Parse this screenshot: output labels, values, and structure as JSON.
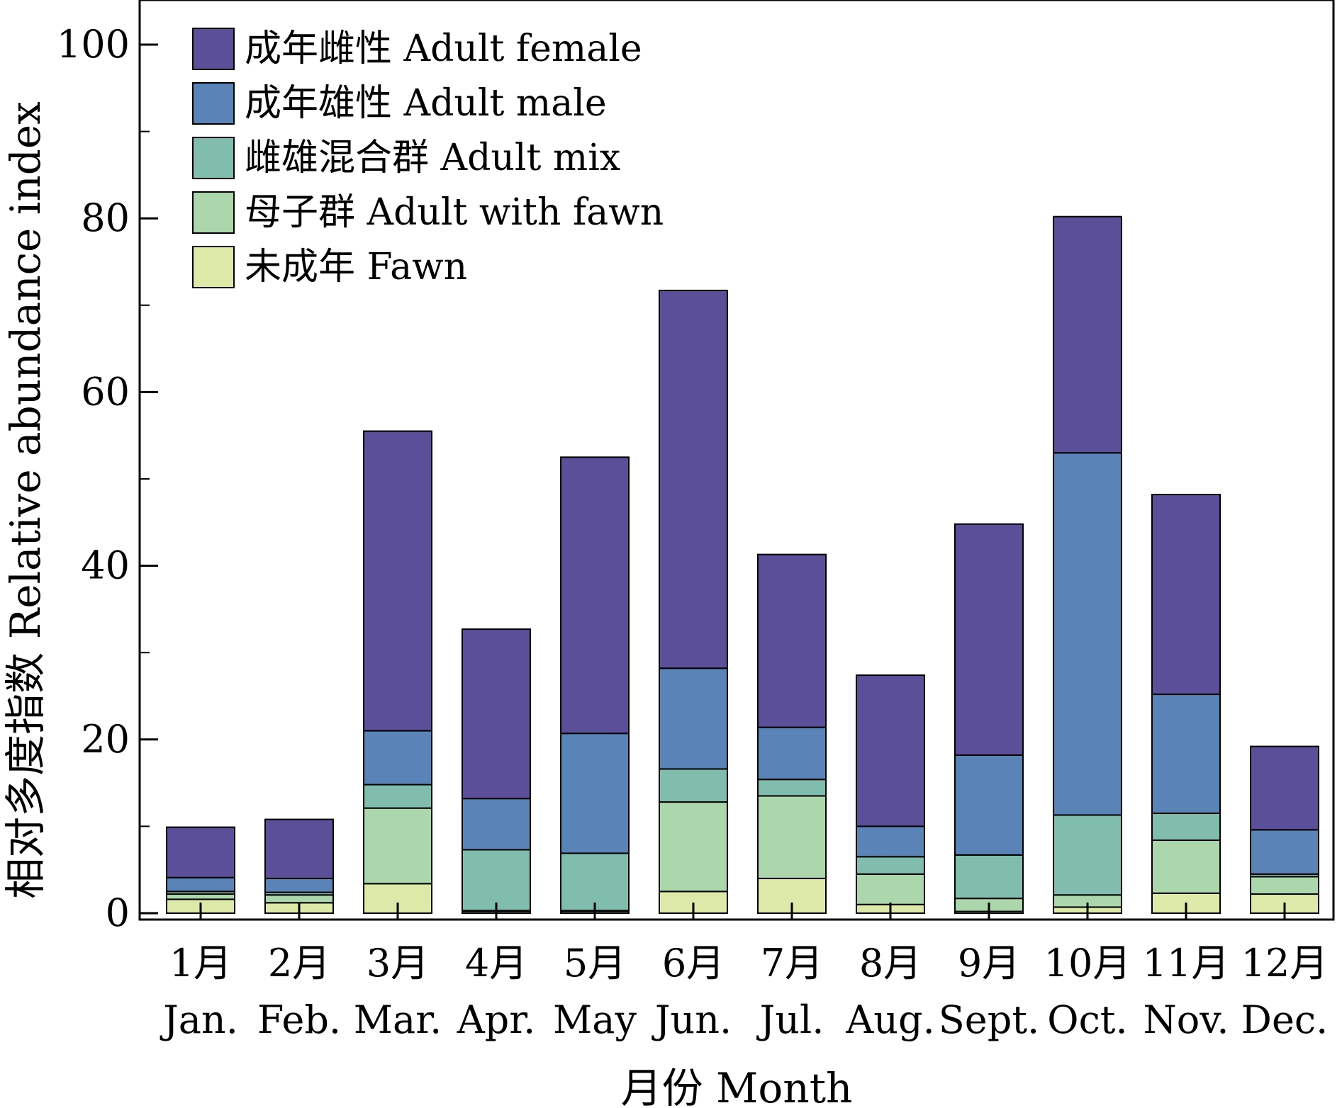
{
  "chart_data": {
    "type": "bar",
    "stacked": true,
    "xlabel": "月份 Month",
    "ylabel": "相对多度指数 Relative abundance index",
    "ylim": [
      0,
      105
    ],
    "yticks": [
      0,
      20,
      40,
      60,
      80,
      100
    ],
    "grid": false,
    "legend_position": "top-left",
    "categories": [
      [
        "1月",
        "Jan."
      ],
      [
        "2月",
        "Feb."
      ],
      [
        "3月",
        "Mar."
      ],
      [
        "4月",
        "Apr."
      ],
      [
        "5月",
        "May"
      ],
      [
        "6月",
        "Jun."
      ],
      [
        "7月",
        "Jul."
      ],
      [
        "8月",
        "Aug."
      ],
      [
        "9月",
        "Sept."
      ],
      [
        "10月",
        "Oct."
      ],
      [
        "11月",
        "Nov."
      ],
      [
        "12月",
        "Dec."
      ]
    ],
    "series": [
      {
        "name": "未成年 Fawn",
        "color": "#dce9a9",
        "values": [
          1.6,
          1.2,
          3.4,
          0.2,
          0.2,
          2.5,
          4.0,
          1.0,
          0.2,
          0.7,
          2.3,
          2.2
        ]
      },
      {
        "name": "母子群 Adult with fawn",
        "color": "#acd6ab",
        "values": [
          0.6,
          0.9,
          8.7,
          0.1,
          0.1,
          10.3,
          9.5,
          3.5,
          1.5,
          1.4,
          6.1,
          2.0
        ]
      },
      {
        "name": "雌雄混合群 Adult mix",
        "color": "#80bdac",
        "values": [
          0.3,
          0.3,
          2.7,
          7.0,
          6.6,
          3.8,
          1.9,
          2.0,
          5.0,
          9.2,
          3.1,
          0.3
        ]
      },
      {
        "name": "成年雄性 Adult male",
        "color": "#5a83b7",
        "values": [
          1.6,
          1.6,
          6.2,
          5.9,
          13.8,
          11.6,
          6.0,
          3.5,
          11.5,
          41.7,
          13.7,
          5.1
        ]
      },
      {
        "name": "成年雌性 Adult female",
        "color": "#5a4f98",
        "values": [
          5.8,
          6.8,
          34.5,
          19.5,
          31.8,
          43.5,
          19.9,
          17.4,
          26.6,
          27.2,
          23.0,
          9.6
        ]
      }
    ]
  }
}
